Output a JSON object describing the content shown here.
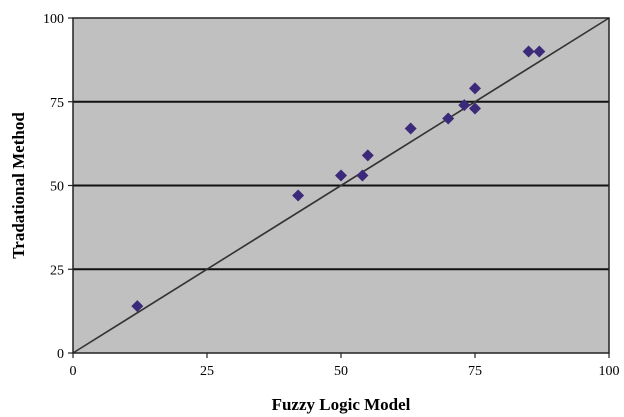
{
  "chart_data": {
    "type": "scatter",
    "title": "",
    "xlabel": "Fuzzy Logic Model",
    "ylabel": "Tradational Method",
    "xlim": [
      0,
      100
    ],
    "ylim": [
      0,
      100
    ],
    "x_ticks": [
      0,
      25,
      50,
      75,
      100
    ],
    "y_ticks": [
      0,
      25,
      50,
      75,
      100
    ],
    "x_tick_labels": [
      "0",
      "25",
      "50",
      "75",
      "100"
    ],
    "y_tick_labels": [
      "0",
      "25",
      "50",
      "75",
      "100"
    ],
    "grid": "horizontal",
    "plot_background": "#c0c0c0",
    "marker": "diamond",
    "marker_color": "#3b2a7a",
    "reference_line": {
      "from": [
        0,
        0
      ],
      "to": [
        100,
        100
      ],
      "color": "#333333"
    },
    "series": [
      {
        "points": [
          {
            "x": 12,
            "y": 14
          },
          {
            "x": 42,
            "y": 47
          },
          {
            "x": 50,
            "y": 53
          },
          {
            "x": 54,
            "y": 53
          },
          {
            "x": 55,
            "y": 59
          },
          {
            "x": 63,
            "y": 67
          },
          {
            "x": 70,
            "y": 70
          },
          {
            "x": 73,
            "y": 74
          },
          {
            "x": 75,
            "y": 73
          },
          {
            "x": 75,
            "y": 79
          },
          {
            "x": 85,
            "y": 90
          },
          {
            "x": 87,
            "y": 90
          }
        ]
      }
    ]
  }
}
